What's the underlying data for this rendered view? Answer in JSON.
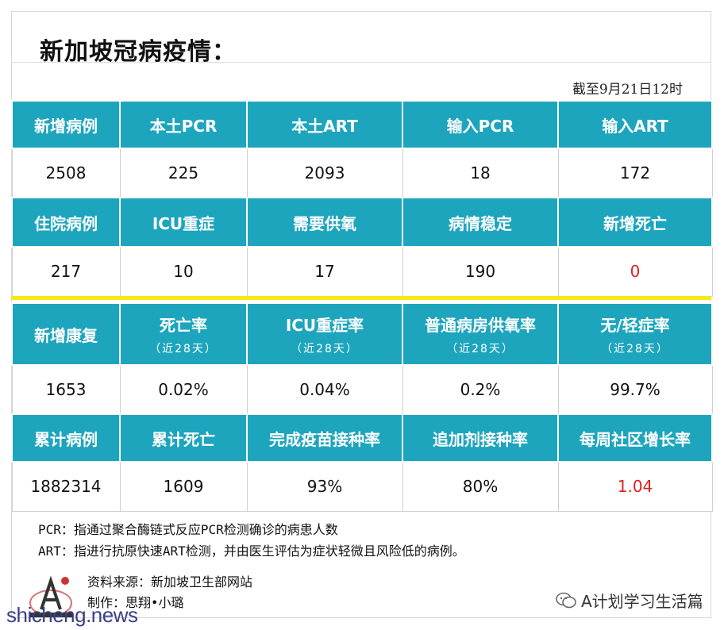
{
  "title": "新加坡冠病疫情：",
  "as_of": "截至9月21日12时",
  "table1": {
    "rows": [
      {
        "cells": [
          {
            "label": "新增病例",
            "value": "2508"
          },
          {
            "label": "本土PCR",
            "value": "225"
          },
          {
            "label": "本土ART",
            "value": "2093"
          },
          {
            "label": "输入PCR",
            "value": "18"
          },
          {
            "label": "输入ART",
            "value": "172"
          }
        ]
      },
      {
        "cells": [
          {
            "label": "住院病例",
            "value": "217"
          },
          {
            "label": "ICU重症",
            "value": "10"
          },
          {
            "label": "需要供氧",
            "value": "17"
          },
          {
            "label": "病情稳定",
            "value": "190"
          },
          {
            "label": "新增死亡",
            "value": "0"
          }
        ]
      }
    ]
  },
  "table2": {
    "rows": [
      {
        "cells": [
          {
            "label": "新增康复",
            "sub": "",
            "value": "1653"
          },
          {
            "label": "死亡率",
            "sub": "（近28天）",
            "value": "0.02%"
          },
          {
            "label": "ICU重症率",
            "sub": "（近28天）",
            "value": "0.04%"
          },
          {
            "label": "普通病房供氧率",
            "sub": "（近28天）",
            "value": "0.2%"
          },
          {
            "label": "无/轻症率",
            "sub": "（近28天）",
            "value": "99.7%"
          }
        ]
      },
      {
        "cells": [
          {
            "label": "累计病例",
            "sub": "",
            "value": "1882314"
          },
          {
            "label": "累计死亡",
            "sub": "",
            "value": "1609"
          },
          {
            "label": "完成疫苗接种率",
            "sub": "",
            "value": "93%"
          },
          {
            "label": "追加剂接种率",
            "sub": "",
            "value": "80%"
          },
          {
            "label": "每周社区增长率",
            "sub": "",
            "value": "1.04"
          }
        ]
      }
    ]
  },
  "notes": {
    "pcr": "PCR：指通过聚合酶链式反应PCR检测确诊的病患人数",
    "art": "ART：指进行抗原快速ART检测，并由医生评估为症状轻微且风险低的病例。"
  },
  "source": {
    "line1": "资料来源：新加坡卫生部网站",
    "line2": "制作：思翔•小璐"
  },
  "watermark": "shicheng.news",
  "brand": "A计划学习生活篇",
  "icons": {
    "brand": "wechat-icon",
    "logo": "a-plan-logo"
  },
  "colors": {
    "header_bg": "#1ea5be",
    "highlight": "#e02020",
    "divider": "#f2e918"
  }
}
